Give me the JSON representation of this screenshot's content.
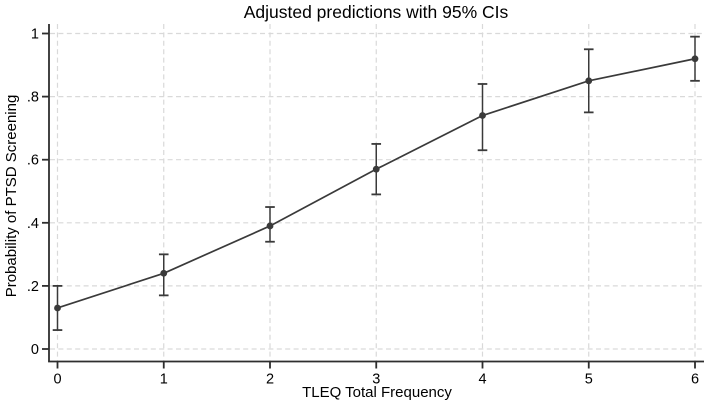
{
  "chart_data": {
    "type": "line",
    "title": "Adjusted predictions with 95% CIs",
    "xlabel": "TLEQ Total Frequency",
    "ylabel": "Probability of PTSD Screening",
    "x": [
      0,
      1,
      2,
      3,
      4,
      5,
      6
    ],
    "series": [
      {
        "name": "Adjusted prediction",
        "values": [
          0.13,
          0.24,
          0.39,
          0.57,
          0.74,
          0.85,
          0.92
        ],
        "ci_lower": [
          0.06,
          0.17,
          0.34,
          0.49,
          0.63,
          0.75,
          0.85
        ],
        "ci_upper": [
          0.2,
          0.3,
          0.45,
          0.65,
          0.84,
          0.95,
          0.99
        ]
      }
    ],
    "xlim": [
      0,
      6
    ],
    "ylim": [
      0,
      1
    ],
    "xticks": [
      "0",
      "1",
      "2",
      "3",
      "4",
      "5",
      "6"
    ],
    "xtick_values": [
      0,
      1,
      2,
      3,
      4,
      5,
      6
    ],
    "yticks": [
      "0",
      ".2",
      ".4",
      ".6",
      ".8",
      "1"
    ],
    "ytick_values": [
      0,
      0.2,
      0.4,
      0.6,
      0.8,
      1
    ],
    "grid": "both, dashed",
    "legend": "none",
    "marker": "filled-circle",
    "error_bars": "capped 95% CI",
    "colors": {
      "line": "#3a3a3a",
      "marker": "#3a3a3a",
      "error_bar": "#3a3a3a",
      "grid": "#d9d9d9",
      "axis": "#2e2e2e",
      "text": "#000000",
      "background": "#ffffff"
    }
  }
}
